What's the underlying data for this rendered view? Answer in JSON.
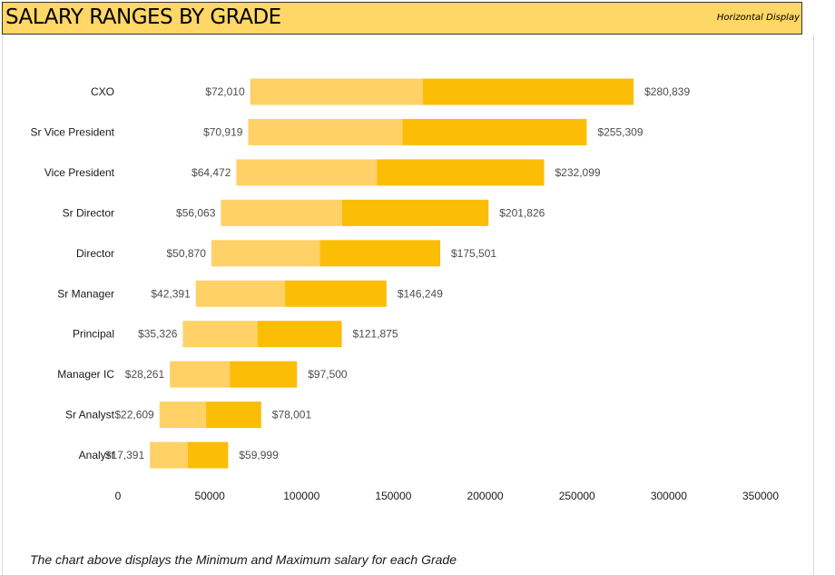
{
  "header": {
    "title": "SALARY RANGES BY GRADE",
    "note": "Horizontal Display"
  },
  "caption": "The chart above displays the Minimum and Maximum salary for each Grade",
  "chart_data": {
    "type": "bar",
    "orientation": "horizontal",
    "stacked_range": true,
    "categories": [
      "CXO",
      "Sr Vice President",
      "Vice President",
      "Sr Director",
      "Director",
      "Sr Manager",
      "Principal",
      "Manager IC",
      "Sr Analyst",
      "Analyst"
    ],
    "series": [
      {
        "name": "",
        "color": "#ffd166",
        "values": [
          72010,
          70919,
          64472,
          56063,
          50870,
          42391,
          35326,
          28261,
          22609,
          17391
        ]
      },
      {
        "name": "",
        "color": "#fcc02c",
        "values": [
          166000,
          155000,
          141000,
          122000,
          110000,
          91000,
          76000,
          61000,
          48000,
          38000
        ]
      },
      {
        "name": "",
        "color": "#fbbd06",
        "values": [
          280839,
          255309,
          232099,
          201826,
          175501,
          146249,
          121875,
          97500,
          78001,
          59999
        ]
      }
    ],
    "min_labels": [
      "$72,010",
      "$70,919",
      "$64,472",
      "$56,063",
      "$50,870",
      "$42,391",
      "$35,326",
      "$28,261",
      "$22,609",
      "$17,391"
    ],
    "max_labels": [
      "$280,839",
      "$255,309",
      "$232,099",
      "$201,826",
      "$175,501",
      "$146,249",
      "$121,875",
      "$97,500",
      "$78,001",
      "$59,999"
    ],
    "xticks": [
      "0",
      "50000",
      "100000",
      "150000",
      "200000",
      "250000",
      "300000",
      "350000"
    ],
    "xlim": [
      0,
      350000
    ],
    "grid": false
  }
}
